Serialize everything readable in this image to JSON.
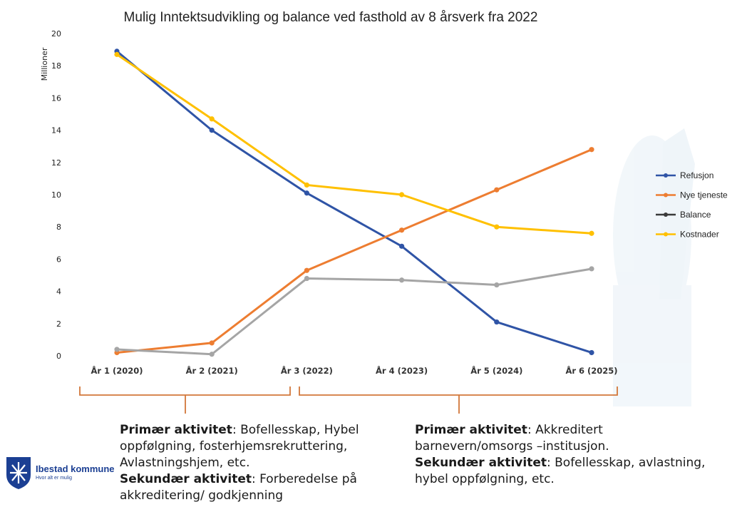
{
  "chart_data": {
    "type": "line",
    "title": "Mulig Inntektsudvikling og balance ved fasthold av 8 årsverk fra 2022",
    "ylabel": "Millioner",
    "xlabel": "",
    "ylim": [
      0,
      20
    ],
    "yticks": [
      "0",
      "2",
      "4",
      "6",
      "8",
      "10",
      "12",
      "14",
      "16",
      "18",
      "20"
    ],
    "categories": [
      "År 1 (2020)",
      "År 2 (2021)",
      "År 3 (2022)",
      "År 4 (2023)",
      "År 5 (2024)",
      "År 6 (2025)"
    ],
    "grid": false,
    "legend_position": "right",
    "series": [
      {
        "name": "Refusjon",
        "color": "#2f54a6",
        "values": [
          18.9,
          14.0,
          10.1,
          6.8,
          2.1,
          0.2
        ]
      },
      {
        "name": "Nye tjeneste",
        "color": "#ed7d31",
        "values": [
          0.2,
          0.8,
          5.3,
          7.8,
          10.3,
          12.8
        ]
      },
      {
        "name": "Balance",
        "color": "#a5a5a5",
        "legend_color": "#3a3a3a",
        "values": [
          0.4,
          0.1,
          4.8,
          4.7,
          4.4,
          5.4
        ]
      },
      {
        "name": "Kostnader",
        "color": "#ffc000",
        "values": [
          18.7,
          14.7,
          10.6,
          10.0,
          8.0,
          7.6
        ]
      }
    ]
  },
  "annotations": {
    "left": {
      "primary_label": "Primær aktivitet",
      "primary_text": ": Bofellesskap, Hybel oppfølgning, fosterhjemsrekruttering, Avlastningshjem, etc.",
      "secondary_label": "Sekundær aktivitet",
      "secondary_text": ": Forberedelse på akkreditering/ godkjenning"
    },
    "right": {
      "primary_label": "Primær aktivitet",
      "primary_text": ": Akkreditert barnevern/omsorgs –institusjon.",
      "secondary_label": "Sekundær aktivitet",
      "secondary_text": ": Bofellesskap, avlastning, hybel oppfølgning, etc."
    },
    "bracket_color": "#d2773a"
  },
  "logo": {
    "name": "Ibestad kommune",
    "tagline": "Hvor alt er mulig",
    "color": "#1b3f93"
  }
}
